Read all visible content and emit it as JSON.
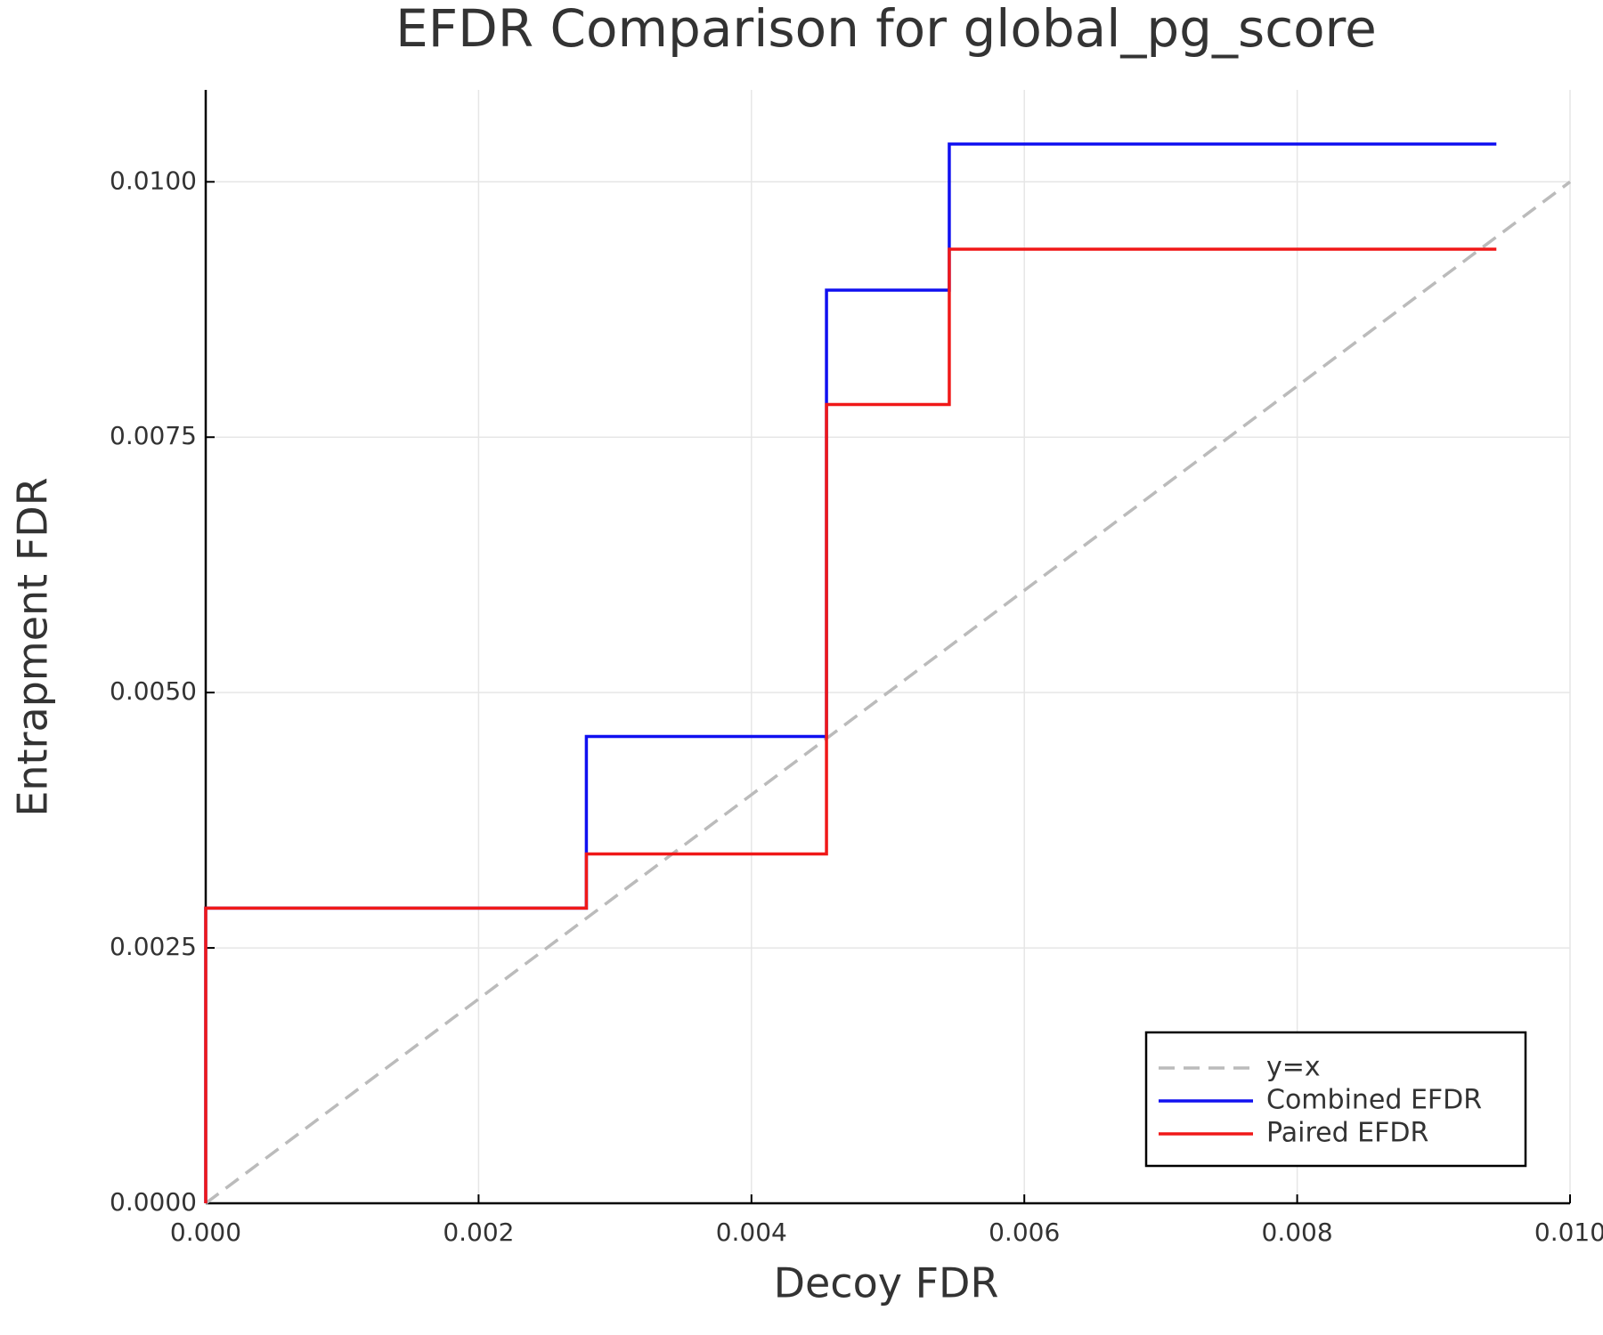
{
  "chart_data": {
    "type": "line",
    "title": "EFDR Comparison for global_pg_score",
    "xlabel": "Decoy FDR",
    "ylabel": "Entrapment FDR",
    "x": [
      0,
      0,
      0.00279,
      0.00279,
      0.00455,
      0.00455,
      0.00545,
      0.00545,
      0.00946
    ],
    "series": [
      {
        "name": "y=x",
        "color": "#bbbbbb",
        "dash": true,
        "x": [
          0,
          0.01
        ],
        "values": [
          0,
          0.01
        ]
      },
      {
        "name": "Combined EFDR",
        "color": "#1010f0",
        "values": [
          0,
          0.00289,
          0.00289,
          0.00457,
          0.00457,
          0.00894,
          0.00894,
          0.01037,
          0.01037
        ]
      },
      {
        "name": "Paired EFDR",
        "color": "#f01818",
        "values": [
          0,
          0.00289,
          0.00289,
          0.00342,
          0.00342,
          0.00782,
          0.00782,
          0.00934,
          0.00934
        ]
      }
    ],
    "xlim": [
      0,
      0.01
    ],
    "ylim": [
      0,
      0.0109
    ],
    "xticks": [
      {
        "value": 0,
        "label": "0.000"
      },
      {
        "value": 0.002,
        "label": "0.002"
      },
      {
        "value": 0.004,
        "label": "0.004"
      },
      {
        "value": 0.006,
        "label": "0.006"
      },
      {
        "value": 0.008,
        "label": "0.008"
      },
      {
        "value": 0.01,
        "label": "0.010"
      }
    ],
    "yticks": [
      {
        "value": 0,
        "label": "0.0000"
      },
      {
        "value": 0.0025,
        "label": "0.0025"
      },
      {
        "value": 0.005,
        "label": "0.0050"
      },
      {
        "value": 0.0075,
        "label": "0.0075"
      },
      {
        "value": 0.01,
        "label": "0.0100"
      }
    ],
    "grid": true,
    "legend": "lower right"
  }
}
